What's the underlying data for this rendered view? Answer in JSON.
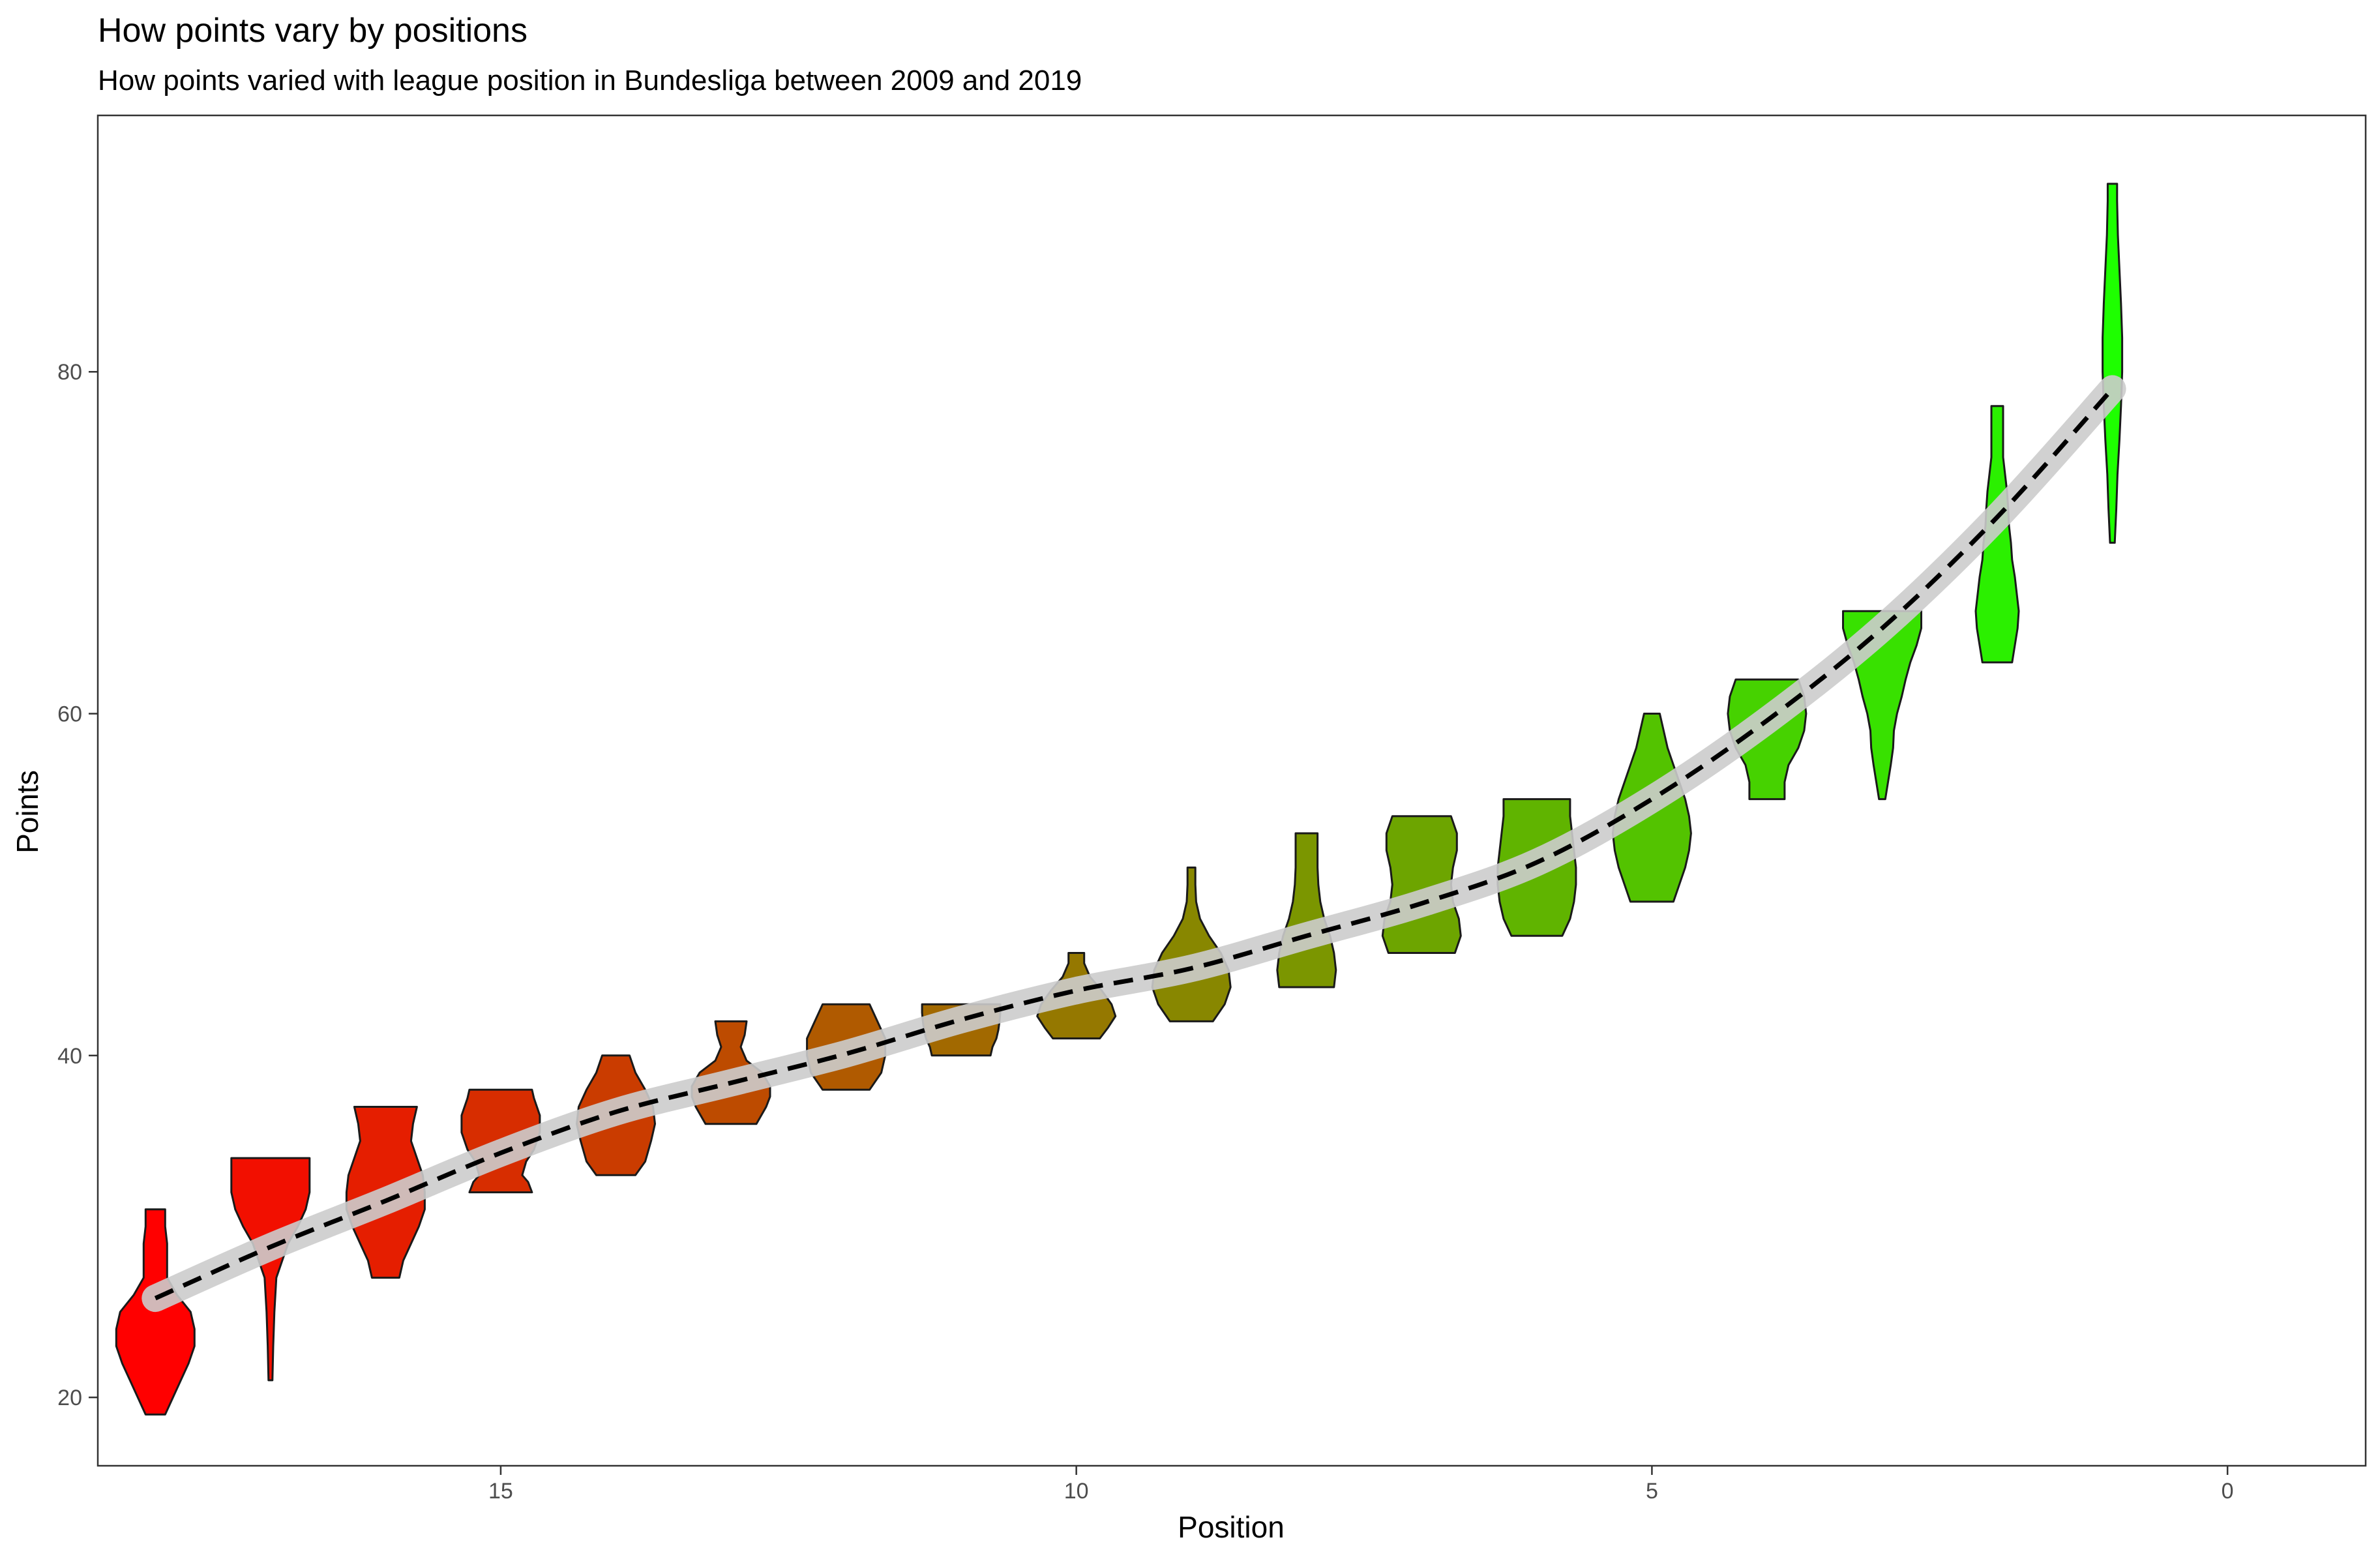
{
  "chart_data": {
    "type": "violin",
    "title": "How points vary by positions",
    "subtitle": "How points varied with league position in Bundesliga between 2009 and 2019",
    "xlabel": "Position",
    "ylabel": "Points",
    "x_reversed": true,
    "xlim": [
      -1.2,
      18.5
    ],
    "ylim": [
      16.0,
      95.0
    ],
    "x_ticks": [
      15,
      10,
      5,
      0
    ],
    "y_ticks": [
      20,
      40,
      60,
      80
    ],
    "grid": false,
    "color_low": "#ff0000",
    "color_high": "#1eff00",
    "violins": [
      {
        "position": 18,
        "min": 19,
        "max": 31,
        "profile": [
          [
            19,
            0.25
          ],
          [
            20,
            0.45
          ],
          [
            21,
            0.65
          ],
          [
            22,
            0.85
          ],
          [
            23,
            1.0
          ],
          [
            24,
            1.0
          ],
          [
            25,
            0.9
          ],
          [
            26,
            0.55
          ],
          [
            27,
            0.3
          ],
          [
            28,
            0.3
          ],
          [
            29,
            0.3
          ],
          [
            30,
            0.25
          ],
          [
            31,
            0.25
          ]
        ]
      },
      {
        "position": 17,
        "min": 21,
        "max": 34,
        "profile": [
          [
            21,
            0.05
          ],
          [
            23,
            0.07
          ],
          [
            25,
            0.1
          ],
          [
            27,
            0.15
          ],
          [
            29,
            0.45
          ],
          [
            30,
            0.7
          ],
          [
            31,
            0.9
          ],
          [
            32,
            1.0
          ],
          [
            33,
            1.0
          ],
          [
            34,
            1.0
          ]
        ]
      },
      {
        "position": 16,
        "min": 27,
        "max": 37,
        "profile": [
          [
            27,
            0.35
          ],
          [
            28,
            0.45
          ],
          [
            29,
            0.65
          ],
          [
            30,
            0.85
          ],
          [
            31,
            1.0
          ],
          [
            32,
            1.0
          ],
          [
            33,
            0.95
          ],
          [
            34,
            0.8
          ],
          [
            35,
            0.65
          ],
          [
            36,
            0.7
          ],
          [
            37,
            0.8
          ]
        ]
      },
      {
        "position": 15,
        "min": 32,
        "max": 38,
        "profile": [
          [
            32,
            0.8
          ],
          [
            32.6,
            0.7
          ],
          [
            33,
            0.55
          ],
          [
            33.8,
            0.65
          ],
          [
            34.5,
            0.85
          ],
          [
            35.5,
            1.0
          ],
          [
            36.5,
            1.0
          ],
          [
            37.5,
            0.85
          ],
          [
            38,
            0.8
          ]
        ]
      },
      {
        "position": 14,
        "min": 33,
        "max": 40,
        "profile": [
          [
            33,
            0.5
          ],
          [
            33.8,
            0.75
          ],
          [
            35,
            0.9
          ],
          [
            36,
            1.0
          ],
          [
            37,
            0.95
          ],
          [
            38,
            0.75
          ],
          [
            39,
            0.5
          ],
          [
            40,
            0.35
          ]
        ]
      },
      {
        "position": 13,
        "min": 36,
        "max": 42,
        "profile": [
          [
            36,
            0.65
          ],
          [
            37,
            0.9
          ],
          [
            37.6,
            1.0
          ],
          [
            38.2,
            1.0
          ],
          [
            39,
            0.8
          ],
          [
            39.7,
            0.4
          ],
          [
            40.5,
            0.25
          ],
          [
            41.2,
            0.35
          ],
          [
            42,
            0.4
          ]
        ]
      },
      {
        "position": 12,
        "min": 38,
        "max": 43,
        "profile": [
          [
            38,
            0.6
          ],
          [
            39,
            0.9
          ],
          [
            40,
            1.0
          ],
          [
            41,
            1.0
          ],
          [
            42,
            0.8
          ],
          [
            43,
            0.6
          ]
        ]
      },
      {
        "position": 11,
        "min": 40,
        "max": 43,
        "profile": [
          [
            40,
            0.75
          ],
          [
            40.5,
            0.8
          ],
          [
            41,
            0.9
          ],
          [
            41.5,
            0.95
          ],
          [
            42,
            0.98
          ],
          [
            42.5,
            1.0
          ],
          [
            43,
            1.0
          ]
        ]
      },
      {
        "position": 10,
        "min": 41,
        "max": 46,
        "profile": [
          [
            41,
            0.6
          ],
          [
            41.6,
            0.8
          ],
          [
            42.3,
            1.0
          ],
          [
            43,
            0.9
          ],
          [
            43.8,
            0.65
          ],
          [
            44.6,
            0.35
          ],
          [
            45.4,
            0.2
          ],
          [
            46,
            0.2
          ]
        ]
      },
      {
        "position": 9,
        "min": 42,
        "max": 51,
        "profile": [
          [
            42,
            0.55
          ],
          [
            43,
            0.85
          ],
          [
            44,
            1.0
          ],
          [
            45,
            0.95
          ],
          [
            46,
            0.75
          ],
          [
            47,
            0.45
          ],
          [
            48,
            0.22
          ],
          [
            49,
            0.12
          ],
          [
            50,
            0.1
          ],
          [
            51,
            0.1
          ]
        ]
      },
      {
        "position": 8,
        "min": 44,
        "max": 53,
        "profile": [
          [
            44,
            0.7
          ],
          [
            45,
            0.75
          ],
          [
            46,
            0.7
          ],
          [
            47,
            0.6
          ],
          [
            48,
            0.45
          ],
          [
            49,
            0.35
          ],
          [
            50,
            0.3
          ],
          [
            51,
            0.28
          ],
          [
            52,
            0.28
          ],
          [
            53,
            0.28
          ]
        ]
      },
      {
        "position": 7,
        "min": 46,
        "max": 54,
        "profile": [
          [
            46,
            0.85
          ],
          [
            47,
            1.0
          ],
          [
            48,
            0.95
          ],
          [
            49,
            0.8
          ],
          [
            50,
            0.75
          ],
          [
            51,
            0.8
          ],
          [
            52,
            0.9
          ],
          [
            53,
            0.9
          ],
          [
            54,
            0.75
          ]
        ]
      },
      {
        "position": 6,
        "min": 47,
        "max": 55,
        "profile": [
          [
            47,
            0.65
          ],
          [
            48,
            0.85
          ],
          [
            49,
            0.95
          ],
          [
            50,
            1.0
          ],
          [
            51,
            1.0
          ],
          [
            52,
            0.95
          ],
          [
            53,
            0.9
          ],
          [
            54,
            0.85
          ],
          [
            55,
            0.85
          ]
        ]
      },
      {
        "position": 5,
        "min": 49,
        "max": 60,
        "profile": [
          [
            49,
            0.55
          ],
          [
            50,
            0.7
          ],
          [
            51,
            0.85
          ],
          [
            52,
            0.95
          ],
          [
            53,
            1.0
          ],
          [
            54,
            0.95
          ],
          [
            55,
            0.85
          ],
          [
            56,
            0.7
          ],
          [
            57,
            0.55
          ],
          [
            58,
            0.4
          ],
          [
            59,
            0.3
          ],
          [
            60,
            0.2
          ]
        ]
      },
      {
        "position": 4,
        "min": 55,
        "max": 62,
        "profile": [
          [
            55,
            0.45
          ],
          [
            56,
            0.45
          ],
          [
            57,
            0.55
          ],
          [
            58,
            0.8
          ],
          [
            59,
            0.95
          ],
          [
            60,
            1.0
          ],
          [
            61,
            0.95
          ],
          [
            62,
            0.8
          ]
        ]
      },
      {
        "position": 3,
        "min": 55,
        "max": 66,
        "profile": [
          [
            55,
            0.08
          ],
          [
            56,
            0.15
          ],
          [
            57,
            0.22
          ],
          [
            58,
            0.28
          ],
          [
            59,
            0.3
          ],
          [
            60,
            0.38
          ],
          [
            61,
            0.5
          ],
          [
            62,
            0.6
          ],
          [
            63,
            0.72
          ],
          [
            64,
            0.88
          ],
          [
            65,
            1.0
          ],
          [
            66,
            1.0
          ]
        ]
      },
      {
        "position": 2,
        "min": 63,
        "max": 78,
        "profile": [
          [
            63,
            0.38
          ],
          [
            64,
            0.45
          ],
          [
            65,
            0.52
          ],
          [
            66,
            0.55
          ],
          [
            67,
            0.5
          ],
          [
            68,
            0.45
          ],
          [
            69,
            0.38
          ],
          [
            70,
            0.35
          ],
          [
            71,
            0.3
          ],
          [
            72,
            0.28
          ],
          [
            73,
            0.25
          ],
          [
            74,
            0.2
          ],
          [
            75,
            0.15
          ],
          [
            76,
            0.15
          ],
          [
            77,
            0.15
          ],
          [
            78,
            0.15
          ]
        ]
      },
      {
        "position": 1,
        "min": 70,
        "max": 91,
        "profile": [
          [
            70,
            0.06
          ],
          [
            72,
            0.1
          ],
          [
            74,
            0.13
          ],
          [
            76,
            0.18
          ],
          [
            78,
            0.22
          ],
          [
            80,
            0.25
          ],
          [
            82,
            0.25
          ],
          [
            84,
            0.22
          ],
          [
            86,
            0.18
          ],
          [
            88,
            0.14
          ],
          [
            90,
            0.12
          ],
          [
            91,
            0.12
          ]
        ]
      }
    ],
    "trend": {
      "style": "dashed",
      "ribbon_color": "#cccccc",
      "x": [
        18,
        17,
        16,
        15,
        14,
        13,
        12,
        11,
        10,
        9,
        8,
        7,
        6,
        5,
        4,
        3,
        2,
        1
      ],
      "y": [
        25.8,
        28.8,
        31.5,
        34.3,
        36.7,
        38.4,
        40.1,
        42.1,
        43.8,
        45.1,
        47.0,
        48.9,
        51.3,
        55.0,
        59.6,
        65.0,
        71.5,
        79.0
      ]
    }
  }
}
